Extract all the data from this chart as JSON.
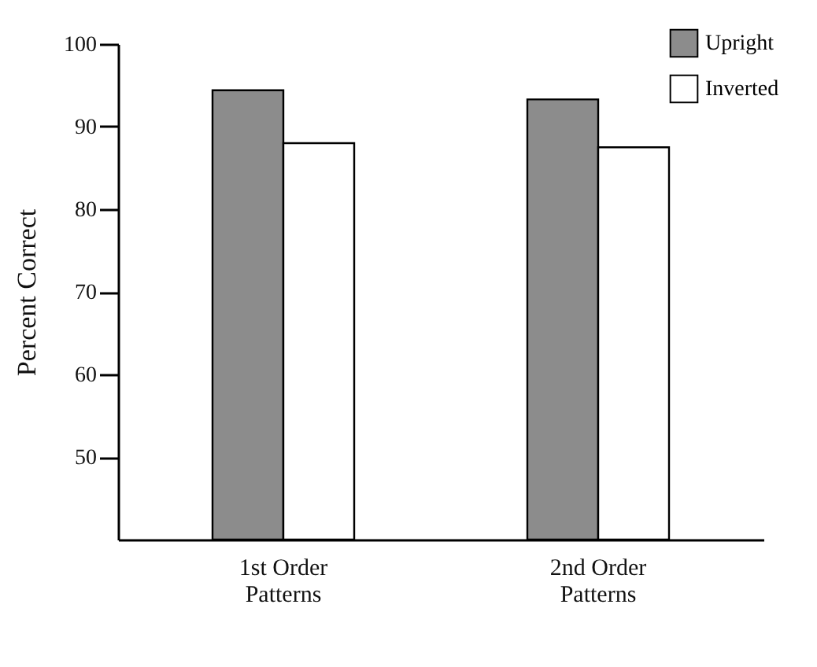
{
  "chart_data": {
    "type": "bar",
    "ylabel": "Percent Correct",
    "categories": [
      "1st Order Patterns",
      "2nd Order Patterns"
    ],
    "series": [
      {
        "name": "Upright",
        "color": "#8c8c8c",
        "values": [
          94.4,
          93.3
        ]
      },
      {
        "name": "Inverted",
        "color": "#ffffff",
        "values": [
          88.0,
          87.5
        ]
      }
    ],
    "ylim": [
      40,
      100
    ],
    "yticks": [
      50,
      60,
      70,
      80,
      90,
      100
    ],
    "grid": false,
    "legend": "top right"
  }
}
